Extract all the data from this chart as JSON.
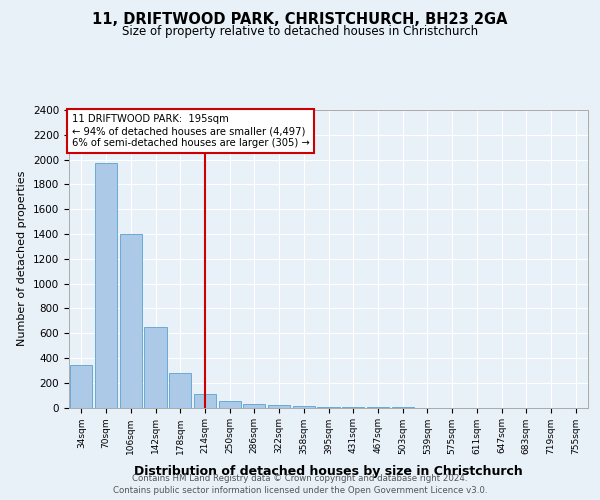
{
  "title1": "11, DRIFTWOOD PARK, CHRISTCHURCH, BH23 2GA",
  "title2": "Size of property relative to detached houses in Christchurch",
  "xlabel": "Distribution of detached houses by size in Christchurch",
  "ylabel": "Number of detached properties",
  "bin_labels": [
    "34sqm",
    "70sqm",
    "106sqm",
    "142sqm",
    "178sqm",
    "214sqm",
    "250sqm",
    "286sqm",
    "322sqm",
    "358sqm",
    "395sqm",
    "431sqm",
    "467sqm",
    "503sqm",
    "539sqm",
    "575sqm",
    "611sqm",
    "647sqm",
    "683sqm",
    "719sqm",
    "755sqm"
  ],
  "bar_heights": [
    340,
    1970,
    1400,
    650,
    280,
    110,
    50,
    30,
    20,
    10,
    5,
    2,
    1,
    1,
    0,
    0,
    0,
    0,
    0,
    0,
    0
  ],
  "bar_color": "#adc9e8",
  "bar_edge_color": "#6aaad4",
  "red_line_color": "#cc0000",
  "annotation_text": "11 DRIFTWOOD PARK:  195sqm\n← 94% of detached houses are smaller (4,497)\n6% of semi-detached houses are larger (305) →",
  "annotation_box_color": "#ffffff",
  "annotation_box_edge": "#cc0000",
  "ylim": [
    0,
    2400
  ],
  "yticks": [
    0,
    200,
    400,
    600,
    800,
    1000,
    1200,
    1400,
    1600,
    1800,
    2000,
    2200,
    2400
  ],
  "footer1": "Contains HM Land Registry data © Crown copyright and database right 2024.",
  "footer2": "Contains public sector information licensed under the Open Government Licence v3.0.",
  "background_color": "#e8f0f8",
  "plot_background": "#e8f0f8"
}
